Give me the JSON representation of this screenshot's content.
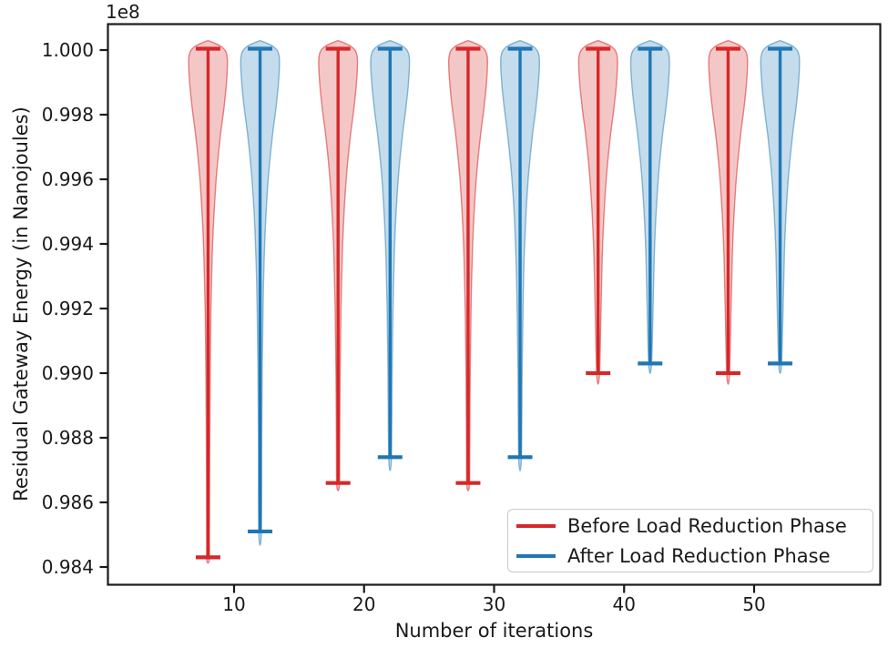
{
  "chart_data": {
    "type": "violin",
    "title": "",
    "xlabel": "Number of iterations",
    "ylabel": "Residual Gateway Energy (in Nanojoules)",
    "offset_text": "1e8",
    "x_tick_labels": [
      "10",
      "20",
      "30",
      "40",
      "50"
    ],
    "y_tick_labels": [
      "1.000",
      "0.998",
      "0.996",
      "0.994",
      "0.992",
      "0.990",
      "0.988",
      "0.986",
      "0.984"
    ],
    "y_units_multiplier": "1e8",
    "xlim": [
      0.3,
      59.8
    ],
    "ylim_1e8": [
      0.9834,
      1.0008
    ],
    "grid": false,
    "legend_location": "lower right",
    "groups": [
      10,
      20,
      30,
      40,
      50
    ],
    "series": [
      {
        "name": "Before Load Reduction Phase",
        "color": "#d62728",
        "fill": "rgba(214,39,40,0.26)",
        "edge": "rgba(214,39,40,0.55)",
        "positions": [
          8,
          18,
          28,
          38,
          48
        ],
        "max_1e8": [
          1.0,
          1.0,
          1.0,
          1.0,
          1.0
        ],
        "min_1e8": [
          0.9843,
          0.9866,
          0.9866,
          0.99,
          0.99
        ]
      },
      {
        "name": "After Load Reduction Phase",
        "color": "#1f77b4",
        "fill": "rgba(31,119,180,0.26)",
        "edge": "rgba(31,119,180,0.50)",
        "positions": [
          12,
          22,
          32,
          42,
          52
        ],
        "max_1e8": [
          1.0,
          1.0,
          1.0,
          1.0,
          1.0
        ],
        "min_1e8": [
          0.9851,
          0.9874,
          0.9874,
          0.9903,
          0.9903
        ]
      }
    ],
    "shape_note": "each violin bulges near its maximum (top) and tapers to a thin tail down to its minimum whisker cap",
    "axis_color": "#1a1a1a"
  }
}
